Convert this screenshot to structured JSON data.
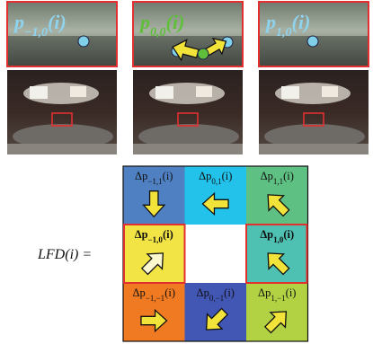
{
  "panels": [
    {
      "symbol": "p",
      "subscript": "−1,0",
      "suffix": "(i)"
    },
    {
      "symbol": "p",
      "subscript": "0,0",
      "suffix": "(i)"
    },
    {
      "symbol": "p",
      "subscript": "1,0",
      "suffix": "(i)"
    }
  ],
  "equation": {
    "symbol": "LFD",
    "suffix": "(i) ="
  },
  "grid": [
    [
      {
        "symbol": "Δp",
        "subscript": "−1,1",
        "suffix": "(i)"
      },
      {
        "symbol": "Δp",
        "subscript": "0,1",
        "suffix": "(i)"
      },
      {
        "symbol": "Δp",
        "subscript": "1,1",
        "suffix": "(i)"
      }
    ],
    [
      {
        "symbol": "Δp",
        "subscript": "−1,0",
        "suffix": "(i)"
      },
      null,
      {
        "symbol": "Δp",
        "subscript": "1,0",
        "suffix": "(i)"
      }
    ],
    [
      {
        "symbol": "Δp",
        "subscript": "−1,−1",
        "suffix": "(i)"
      },
      {
        "symbol": "Δp",
        "subscript": "0,−1",
        "suffix": "(i)"
      },
      {
        "symbol": "Δp",
        "subscript": "1,−1",
        "suffix": "(i)"
      }
    ]
  ]
}
